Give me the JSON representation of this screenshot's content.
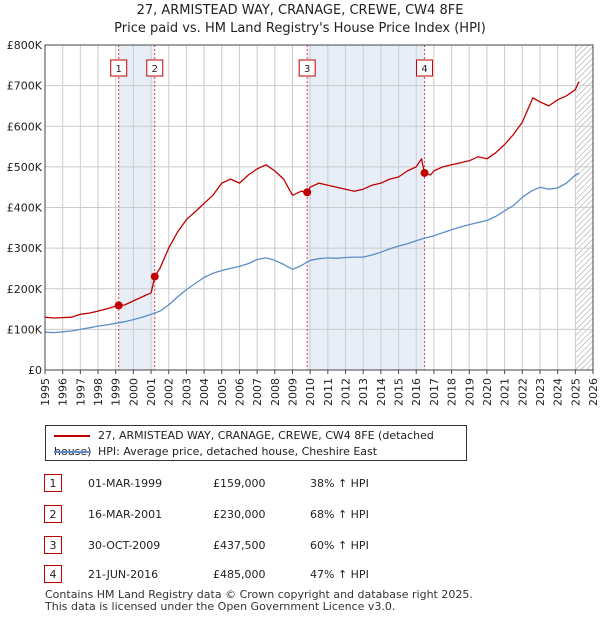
{
  "title_line1": "27, ARMISTEAD WAY, CRANAGE, CREWE, CW4 8FE",
  "title_line2": "Price paid vs. HM Land Registry's House Price Index (HPI)",
  "colors": {
    "red": "#c00000",
    "blue": "#5b8ec7",
    "band": "#e8eef8",
    "grid": "#cccccc"
  },
  "legend": {
    "red_label": "27, ARMISTEAD WAY, CRANAGE, CREWE, CW4 8FE (detached house)",
    "blue_label": "HPI: Average price, detached house, Cheshire East"
  },
  "sales": [
    {
      "num": "1",
      "date": "01-MAR-1999",
      "price": "£159,000",
      "pct": "38% ↑ HPI"
    },
    {
      "num": "2",
      "date": "16-MAR-2001",
      "price": "£230,000",
      "pct": "68% ↑ HPI"
    },
    {
      "num": "3",
      "date": "30-OCT-2009",
      "price": "£437,500",
      "pct": "60% ↑ HPI"
    },
    {
      "num": "4",
      "date": "21-JUN-2016",
      "price": "£485,000",
      "pct": "47% ↑ HPI"
    }
  ],
  "footer_line1": "Contains HM Land Registry data © Crown copyright and database right 2025.",
  "footer_line2": "This data is licensed under the Open Government Licence v3.0.",
  "chart_data": {
    "type": "line",
    "title": "27, ARMISTEAD WAY, CRANAGE, CREWE, CW4 8FE",
    "subtitle": "Price paid vs. HM Land Registry's House Price Index (HPI)",
    "xlim": [
      1995,
      2026
    ],
    "ylim": [
      0,
      800000
    ],
    "x_ticks": [
      "1995",
      "1996",
      "1997",
      "1998",
      "1999",
      "2000",
      "2001",
      "2002",
      "2003",
      "2004",
      "2005",
      "2006",
      "2007",
      "2008",
      "2009",
      "2010",
      "2011",
      "2012",
      "2013",
      "2014",
      "2015",
      "2016",
      "2017",
      "2018",
      "2019",
      "2020",
      "2021",
      "2022",
      "2023",
      "2024",
      "2025",
      "2026"
    ],
    "y_ticks": [
      {
        "value": 0,
        "label": "£0"
      },
      {
        "value": 100000,
        "label": "£100K"
      },
      {
        "value": 200000,
        "label": "£200K"
      },
      {
        "value": 300000,
        "label": "£300K"
      },
      {
        "value": 400000,
        "label": "£400K"
      },
      {
        "value": 500000,
        "label": "£500K"
      },
      {
        "value": 600000,
        "label": "£600K"
      },
      {
        "value": 700000,
        "label": "£700K"
      },
      {
        "value": 800000,
        "label": "£800K"
      }
    ],
    "series": [
      {
        "name": "27, ARMISTEAD WAY, CRANAGE, CREWE, CW4 8FE (detached house)",
        "color": "#c00000",
        "x": [
          1995.0,
          1995.5,
          1996.0,
          1996.5,
          1997.0,
          1997.5,
          1998.0,
          1998.5,
          1999.17,
          1999.5,
          2000.0,
          2000.5,
          2001.0,
          2001.21,
          2001.5,
          2002.0,
          2002.5,
          2003.0,
          2003.5,
          2004.0,
          2004.5,
          2005.0,
          2005.5,
          2006.0,
          2006.5,
          2007.0,
          2007.5,
          2008.0,
          2008.5,
          2009.0,
          2009.5,
          2009.83,
          2010.0,
          2010.5,
          2011.0,
          2011.5,
          2012.0,
          2012.5,
          2013.0,
          2013.5,
          2014.0,
          2014.5,
          2015.0,
          2015.5,
          2016.0,
          2016.3,
          2016.47,
          2016.8,
          2017.0,
          2017.5,
          2018.0,
          2018.5,
          2019.0,
          2019.5,
          2020.0,
          2020.5,
          2021.0,
          2021.5,
          2022.0,
          2022.3,
          2022.6,
          2023.0,
          2023.5,
          2024.0,
          2024.5,
          2025.0,
          2025.2
        ],
        "y": [
          130000,
          128000,
          129000,
          130000,
          137000,
          140000,
          145000,
          151000,
          159000,
          160000,
          170000,
          180000,
          190000,
          230000,
          250000,
          300000,
          340000,
          370000,
          390000,
          410000,
          430000,
          460000,
          470000,
          460000,
          480000,
          495000,
          505000,
          490000,
          470000,
          430000,
          440000,
          437500,
          450000,
          460000,
          455000,
          450000,
          445000,
          440000,
          445000,
          455000,
          460000,
          470000,
          475000,
          490000,
          500000,
          520000,
          485000,
          480000,
          490000,
          500000,
          505000,
          510000,
          515000,
          525000,
          520000,
          535000,
          555000,
          580000,
          610000,
          640000,
          670000,
          660000,
          650000,
          665000,
          675000,
          690000,
          710000
        ]
      },
      {
        "name": "HPI: Average price, detached house, Cheshire East",
        "color": "#5b8ec7",
        "x": [
          1995.0,
          1995.5,
          1996.0,
          1996.5,
          1997.0,
          1997.5,
          1998.0,
          1998.5,
          1999.0,
          1999.5,
          2000.0,
          2000.5,
          2001.0,
          2001.5,
          2002.0,
          2002.5,
          2003.0,
          2003.5,
          2004.0,
          2004.5,
          2005.0,
          2005.5,
          2006.0,
          2006.5,
          2007.0,
          2007.5,
          2008.0,
          2008.5,
          2009.0,
          2009.5,
          2010.0,
          2010.5,
          2011.0,
          2011.5,
          2012.0,
          2012.5,
          2013.0,
          2013.5,
          2014.0,
          2014.5,
          2015.0,
          2015.5,
          2016.0,
          2016.5,
          2017.0,
          2017.5,
          2018.0,
          2018.5,
          2019.0,
          2019.5,
          2020.0,
          2020.5,
          2021.0,
          2021.5,
          2022.0,
          2022.5,
          2023.0,
          2023.5,
          2024.0,
          2024.5,
          2025.0,
          2025.2
        ],
        "y": [
          93000,
          92000,
          94000,
          96000,
          100000,
          104000,
          108000,
          111000,
          115000,
          119000,
          124000,
          130000,
          137000,
          145000,
          160000,
          180000,
          198000,
          213000,
          228000,
          238000,
          245000,
          250000,
          255000,
          262000,
          272000,
          276000,
          270000,
          260000,
          248000,
          257000,
          270000,
          274000,
          276000,
          275000,
          277000,
          278000,
          278000,
          283000,
          290000,
          298000,
          305000,
          311000,
          318000,
          325000,
          330000,
          338000,
          345000,
          352000,
          358000,
          363000,
          368000,
          378000,
          392000,
          405000,
          425000,
          440000,
          450000,
          445000,
          448000,
          460000,
          480000,
          485000
        ]
      }
    ],
    "sales": [
      {
        "id": "1",
        "x": 1999.17,
        "y": 159000
      },
      {
        "id": "2",
        "x": 2001.21,
        "y": 230000
      },
      {
        "id": "3",
        "x": 2009.83,
        "y": 437500
      },
      {
        "id": "4",
        "x": 2016.47,
        "y": 485000
      }
    ],
    "shaded_bands": [
      [
        1999.17,
        2001.21
      ],
      [
        2009.83,
        2016.47
      ]
    ],
    "hatched_region": [
      2025.0,
      2026.0
    ]
  }
}
